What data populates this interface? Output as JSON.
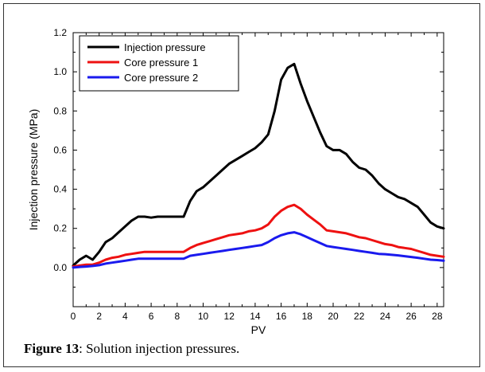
{
  "caption": {
    "label": "Figure 13",
    "text": ": Solution injection pressures."
  },
  "chart_data": {
    "type": "line",
    "title": "",
    "xlabel": "PV",
    "ylabel": "Injection pressure (MPa)",
    "xlim": [
      0,
      28.5
    ],
    "ylim": [
      -0.2,
      1.2
    ],
    "xticks": [
      0,
      2,
      4,
      6,
      8,
      10,
      12,
      14,
      16,
      18,
      20,
      22,
      24,
      26,
      28
    ],
    "xtick_labels": [
      "0",
      "2",
      "4",
      "6",
      "8",
      "10",
      "12",
      "14",
      "16",
      "18",
      "20",
      "22",
      "24",
      "26",
      "28"
    ],
    "yticks": [
      0.0,
      0.2,
      0.4,
      0.6,
      0.8,
      1.0,
      1.2
    ],
    "ytick_labels": [
      "0.0",
      "0.2",
      "0.4",
      "0.6",
      "0.8",
      "1.0",
      "1.2"
    ],
    "grid": false,
    "legend_position": "top-left",
    "series": [
      {
        "name": "Injection pressure",
        "color": "#000000",
        "x": [
          0,
          0.5,
          1,
          1.5,
          2,
          2.5,
          3,
          3.5,
          4,
          4.5,
          5,
          5.5,
          6,
          6.5,
          7,
          7.5,
          8,
          8.5,
          9,
          9.5,
          10,
          10.5,
          11,
          11.5,
          12,
          12.5,
          13,
          13.5,
          14,
          14.5,
          15,
          15.5,
          16,
          16.5,
          17,
          17.5,
          18,
          18.5,
          19,
          19.5,
          20,
          20.5,
          21,
          21.5,
          22,
          22.5,
          23,
          23.5,
          24,
          24.5,
          25,
          25.5,
          26,
          26.5,
          27,
          27.5,
          28,
          28.5
        ],
        "y": [
          0.01,
          0.04,
          0.06,
          0.04,
          0.08,
          0.13,
          0.15,
          0.18,
          0.21,
          0.24,
          0.26,
          0.26,
          0.255,
          0.26,
          0.26,
          0.26,
          0.26,
          0.26,
          0.34,
          0.39,
          0.41,
          0.44,
          0.47,
          0.5,
          0.53,
          0.55,
          0.57,
          0.59,
          0.61,
          0.64,
          0.68,
          0.8,
          0.96,
          1.02,
          1.04,
          0.94,
          0.85,
          0.77,
          0.69,
          0.62,
          0.6,
          0.6,
          0.58,
          0.54,
          0.51,
          0.5,
          0.47,
          0.43,
          0.4,
          0.38,
          0.36,
          0.35,
          0.33,
          0.31,
          0.27,
          0.23,
          0.21,
          0.2
        ]
      },
      {
        "name": "Core pressure 1",
        "color": "#ee1111",
        "x": [
          0,
          0.5,
          1,
          1.5,
          2,
          2.5,
          3,
          3.5,
          4,
          4.5,
          5,
          5.5,
          6,
          6.5,
          7,
          7.5,
          8,
          8.5,
          9,
          9.5,
          10,
          10.5,
          11,
          11.5,
          12,
          12.5,
          13,
          13.5,
          14,
          14.5,
          15,
          15.5,
          16,
          16.5,
          17,
          17.5,
          18,
          18.5,
          19,
          19.5,
          20,
          20.5,
          21,
          21.5,
          22,
          22.5,
          23,
          23.5,
          24,
          24.5,
          25,
          25.5,
          26,
          26.5,
          27,
          27.5,
          28,
          28.5
        ],
        "y": [
          0.005,
          0.01,
          0.015,
          0.015,
          0.025,
          0.04,
          0.05,
          0.055,
          0.065,
          0.07,
          0.075,
          0.08,
          0.08,
          0.08,
          0.08,
          0.08,
          0.08,
          0.08,
          0.1,
          0.115,
          0.125,
          0.135,
          0.145,
          0.155,
          0.165,
          0.17,
          0.175,
          0.185,
          0.19,
          0.2,
          0.22,
          0.26,
          0.29,
          0.31,
          0.32,
          0.3,
          0.27,
          0.245,
          0.22,
          0.19,
          0.185,
          0.18,
          0.175,
          0.165,
          0.155,
          0.15,
          0.14,
          0.13,
          0.12,
          0.115,
          0.105,
          0.1,
          0.095,
          0.085,
          0.075,
          0.065,
          0.06,
          0.055
        ]
      },
      {
        "name": "Core pressure 2",
        "color": "#1a1aee",
        "x": [
          0,
          0.5,
          1,
          1.5,
          2,
          2.5,
          3,
          3.5,
          4,
          4.5,
          5,
          5.5,
          6,
          6.5,
          7,
          7.5,
          8,
          8.5,
          9,
          9.5,
          10,
          10.5,
          11,
          11.5,
          12,
          12.5,
          13,
          13.5,
          14,
          14.5,
          15,
          15.5,
          16,
          16.5,
          17,
          17.5,
          18,
          18.5,
          19,
          19.5,
          20,
          20.5,
          21,
          21.5,
          22,
          22.5,
          23,
          23.5,
          24,
          24.5,
          25,
          25.5,
          26,
          26.5,
          27,
          27.5,
          28,
          28.5
        ],
        "y": [
          0.0,
          0.003,
          0.005,
          0.008,
          0.012,
          0.02,
          0.025,
          0.03,
          0.035,
          0.04,
          0.045,
          0.045,
          0.045,
          0.045,
          0.045,
          0.045,
          0.045,
          0.045,
          0.06,
          0.065,
          0.07,
          0.075,
          0.08,
          0.085,
          0.09,
          0.095,
          0.1,
          0.105,
          0.11,
          0.115,
          0.13,
          0.15,
          0.165,
          0.175,
          0.18,
          0.17,
          0.155,
          0.14,
          0.125,
          0.11,
          0.105,
          0.1,
          0.095,
          0.09,
          0.085,
          0.08,
          0.075,
          0.07,
          0.068,
          0.065,
          0.062,
          0.058,
          0.054,
          0.05,
          0.045,
          0.04,
          0.038,
          0.035
        ]
      }
    ]
  }
}
